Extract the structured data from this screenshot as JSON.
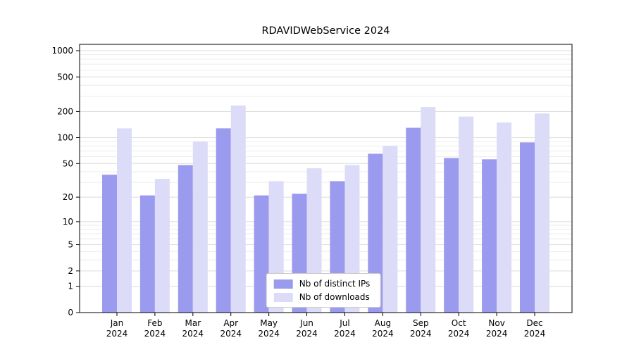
{
  "chart_data": {
    "type": "bar",
    "title": "RDAVIDWebService 2024",
    "categories": [
      "Jan",
      "Feb",
      "Mar",
      "Apr",
      "May",
      "Jun",
      "Jul",
      "Aug",
      "Sep",
      "Oct",
      "Nov",
      "Dec"
    ],
    "year_label": "2024",
    "y_scale": "log1p",
    "yticks": [
      0,
      1,
      2,
      5,
      10,
      20,
      50,
      100,
      200,
      500,
      1000
    ],
    "minor_gridlines": [
      3,
      4,
      6,
      7,
      8,
      9,
      30,
      40,
      60,
      70,
      80,
      90,
      300,
      400,
      600,
      700,
      800,
      900
    ],
    "ylim": [
      0,
      1100
    ],
    "grid": true,
    "legend_position": "bottom-center",
    "series": [
      {
        "name": "Nb of distinct IPs",
        "color": "#9a9aee",
        "values": [
          37,
          21,
          48,
          128,
          21,
          22,
          31,
          65,
          130,
          58,
          56,
          88
        ]
      },
      {
        "name": "Nb of downloads",
        "color": "#dcdcf8",
        "values": [
          128,
          33,
          90,
          235,
          31,
          44,
          48,
          80,
          225,
          175,
          150,
          190
        ]
      }
    ],
    "colors": {
      "major_grid": "#dcdcdc",
      "minor_grid": "#ececec",
      "axis": "#000000",
      "legend_border": "#cccccc"
    }
  }
}
